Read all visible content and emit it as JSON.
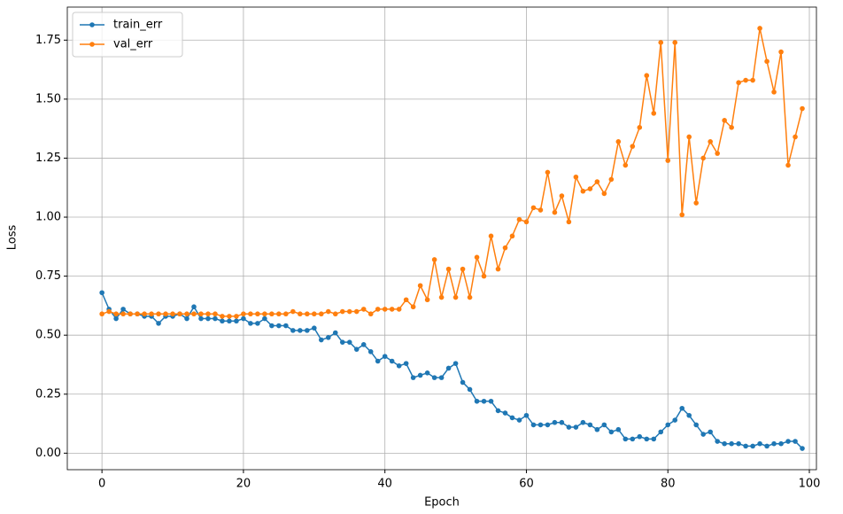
{
  "chart_data": {
    "type": "line",
    "xlabel": "Epoch",
    "ylabel": "Loss",
    "x": [
      0,
      1,
      2,
      3,
      4,
      5,
      6,
      7,
      8,
      9,
      10,
      11,
      12,
      13,
      14,
      15,
      16,
      17,
      18,
      19,
      20,
      21,
      22,
      23,
      24,
      25,
      26,
      27,
      28,
      29,
      30,
      31,
      32,
      33,
      34,
      35,
      36,
      37,
      38,
      39,
      40,
      41,
      42,
      43,
      44,
      45,
      46,
      47,
      48,
      49,
      50,
      51,
      52,
      53,
      54,
      55,
      56,
      57,
      58,
      59,
      60,
      61,
      62,
      63,
      64,
      65,
      66,
      67,
      68,
      69,
      70,
      71,
      72,
      73,
      74,
      75,
      76,
      77,
      78,
      79,
      80,
      81,
      82,
      83,
      84,
      85,
      86,
      87,
      88,
      89,
      90,
      91,
      92,
      93,
      94,
      95,
      96,
      97,
      98,
      99
    ],
    "series": [
      {
        "name": "train_err",
        "color": "#1f77b4",
        "values": [
          0.68,
          0.61,
          0.57,
          0.61,
          0.59,
          0.59,
          0.58,
          0.58,
          0.55,
          0.58,
          0.58,
          0.59,
          0.57,
          0.62,
          0.57,
          0.57,
          0.57,
          0.56,
          0.56,
          0.56,
          0.57,
          0.55,
          0.55,
          0.57,
          0.54,
          0.54,
          0.54,
          0.52,
          0.52,
          0.52,
          0.53,
          0.48,
          0.49,
          0.51,
          0.47,
          0.47,
          0.44,
          0.46,
          0.43,
          0.39,
          0.41,
          0.39,
          0.37,
          0.38,
          0.32,
          0.33,
          0.34,
          0.32,
          0.32,
          0.36,
          0.38,
          0.3,
          0.27,
          0.22,
          0.22,
          0.22,
          0.18,
          0.17,
          0.15,
          0.14,
          0.16,
          0.12,
          0.12,
          0.12,
          0.13,
          0.13,
          0.11,
          0.11,
          0.13,
          0.12,
          0.1,
          0.12,
          0.09,
          0.1,
          0.06,
          0.06,
          0.07,
          0.06,
          0.06,
          0.09,
          0.12,
          0.14,
          0.19,
          0.16,
          0.12,
          0.08,
          0.09,
          0.05,
          0.04,
          0.04,
          0.04,
          0.03,
          0.03,
          0.04,
          0.03,
          0.04,
          0.04,
          0.05,
          0.05,
          0.02
        ]
      },
      {
        "name": "val_err",
        "color": "#ff7f0e",
        "values": [
          0.59,
          0.6,
          0.59,
          0.59,
          0.59,
          0.59,
          0.59,
          0.59,
          0.59,
          0.59,
          0.59,
          0.59,
          0.59,
          0.59,
          0.59,
          0.59,
          0.59,
          0.58,
          0.58,
          0.58,
          0.59,
          0.59,
          0.59,
          0.59,
          0.59,
          0.59,
          0.59,
          0.6,
          0.59,
          0.59,
          0.59,
          0.59,
          0.6,
          0.59,
          0.6,
          0.6,
          0.6,
          0.61,
          0.59,
          0.61,
          0.61,
          0.61,
          0.61,
          0.65,
          0.62,
          0.71,
          0.65,
          0.82,
          0.66,
          0.78,
          0.66,
          0.78,
          0.66,
          0.83,
          0.75,
          0.92,
          0.78,
          0.87,
          0.92,
          0.99,
          0.98,
          1.04,
          1.03,
          1.19,
          1.02,
          1.09,
          0.98,
          1.17,
          1.11,
          1.12,
          1.15,
          1.1,
          1.16,
          1.32,
          1.22,
          1.3,
          1.38,
          1.6,
          1.44,
          1.74,
          1.24,
          1.74,
          1.01,
          1.34,
          1.06,
          1.25,
          1.32,
          1.27,
          1.41,
          1.38,
          1.57,
          1.58,
          1.58,
          1.8,
          1.66,
          1.53,
          1.7,
          1.22,
          1.34,
          1.46
        ]
      }
    ],
    "xlim": [
      -4.9,
      101.0
    ],
    "ylim": [
      -0.07,
      1.89
    ],
    "xticks": [
      0,
      20,
      40,
      60,
      80,
      100
    ],
    "yticks": [
      {
        "value": 0,
        "label": "0.00"
      },
      {
        "value": 0.25,
        "label": "0.25"
      },
      {
        "value": 0.5,
        "label": "0.50"
      },
      {
        "value": 0.75,
        "label": "0.75"
      },
      {
        "value": 1,
        "label": "1.00"
      },
      {
        "value": 1.25,
        "label": "1.25"
      },
      {
        "value": 1.5,
        "label": "1.50"
      },
      {
        "value": 1.75,
        "label": "1.75"
      }
    ],
    "grid": true,
    "legend": "upper left"
  }
}
